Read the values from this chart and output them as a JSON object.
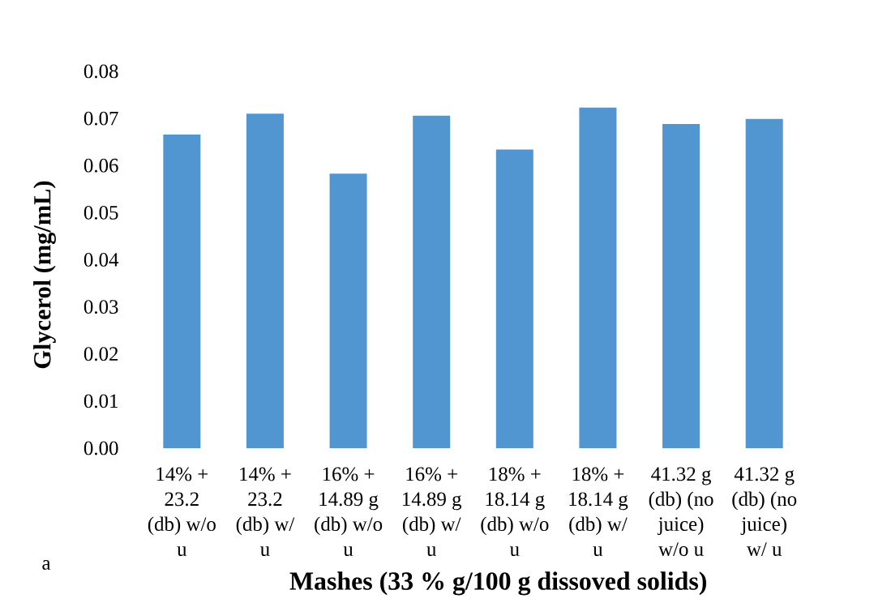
{
  "chart_data": {
    "type": "bar",
    "xlabel": "Mashes (33 % g/100 g dissoved solids)",
    "ylabel": "Glycerol (mg/mL)",
    "categories": [
      "14% + 23.2 (db) w/o u",
      "14% + 23.2 (db) w/ u",
      "16% + 14.89 g (db) w/o u",
      "16% + 14.89 g (db) w/ u",
      "18% + 18.14 g (db) w/o u",
      "18% + 18.14 g (db) w/ u",
      "41.32 g (db) (no juice) w/o u",
      "41.32 g (db) (no juice) w/ u"
    ],
    "values": [
      0.0666,
      0.071,
      0.0583,
      0.0706,
      0.0634,
      0.0723,
      0.0688,
      0.0699
    ],
    "color": "#5296d1",
    "ylim": [
      0,
      0.08
    ],
    "yticks": [
      {
        "value": 0,
        "label": "0.00"
      },
      0.01,
      0.02,
      0.03,
      0.04,
      0.05,
      0.06,
      0.07,
      0.08
    ],
    "annotations": [
      "a"
    ]
  }
}
